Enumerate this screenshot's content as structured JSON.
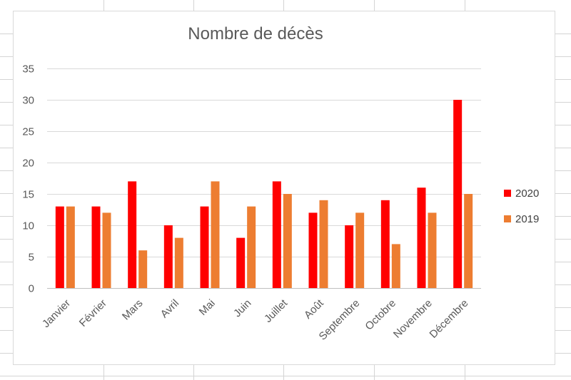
{
  "chart_data": {
    "type": "bar",
    "title": "Nombre de décès",
    "xlabel": "",
    "ylabel": "",
    "ylim": [
      0,
      35
    ],
    "yticks": [
      0,
      5,
      10,
      15,
      20,
      25,
      30,
      35
    ],
    "grid": true,
    "legend_position": "right",
    "categories": [
      "Janvier",
      "Février",
      "Mars",
      "Avril",
      "Mai",
      "Juin",
      "Juillet",
      "Août",
      "Septembre",
      "Octobre",
      "Novembre",
      "Décembre"
    ],
    "series": [
      {
        "name": "2020",
        "color": "#ff0000",
        "values": [
          13,
          13,
          17,
          10,
          13,
          8,
          17,
          12,
          10,
          14,
          16,
          30
        ]
      },
      {
        "name": "2019",
        "color": "#ed7d31",
        "values": [
          13,
          12,
          6,
          8,
          17,
          13,
          15,
          14,
          12,
          7,
          12,
          15
        ]
      }
    ]
  }
}
